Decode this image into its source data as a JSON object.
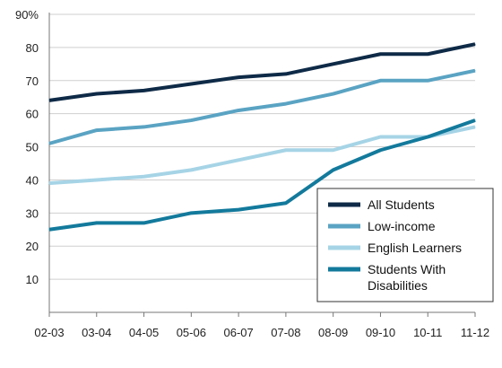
{
  "chart_data": {
    "type": "line",
    "categories": [
      "02-03",
      "03-04",
      "04-05",
      "05-06",
      "06-07",
      "07-08",
      "08-09",
      "09-10",
      "10-11",
      "11-12"
    ],
    "y_ticks": [
      10,
      20,
      30,
      40,
      50,
      60,
      70,
      80,
      90
    ],
    "y_tick_labels": [
      "10",
      "20",
      "30",
      "40",
      "50",
      "60",
      "70",
      "80",
      "90%"
    ],
    "ylim": [
      0,
      90
    ],
    "grid": "horizontal",
    "legend_position": "bottom-right",
    "series": [
      {
        "name": "All Students",
        "color": "#0e2a47",
        "values": [
          64,
          66,
          67,
          69,
          71,
          72,
          75,
          78,
          78,
          81
        ]
      },
      {
        "name": "Low-income",
        "color": "#5aa3c3",
        "values": [
          51,
          55,
          56,
          58,
          61,
          63,
          66,
          70,
          70,
          73
        ]
      },
      {
        "name": "English Learners",
        "color": "#a6d4e6",
        "values": [
          39,
          40,
          41,
          43,
          46,
          49,
          49,
          53,
          53,
          56
        ]
      },
      {
        "name": "Students With Disabilities",
        "color": "#137a9c",
        "values": [
          25,
          27,
          27,
          30,
          31,
          33,
          43,
          49,
          53,
          58
        ]
      }
    ],
    "legend_lines": [
      [
        "All Students"
      ],
      [
        "Low-income"
      ],
      [
        "English Learners"
      ],
      [
        "Students With",
        "Disabilities"
      ]
    ]
  }
}
